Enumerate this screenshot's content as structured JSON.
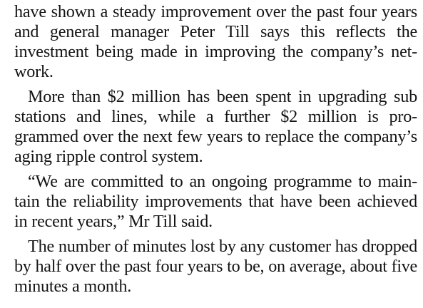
{
  "article": {
    "paragraphs": [
      {
        "lines": [
          "have shown a steady improvement over the past four years",
          "and general manager Peter Till says this reflects the",
          "investment being made in improving the company’s net-",
          "work."
        ]
      },
      {
        "lines": [
          "More than $2 million has been spent in upgrading sub",
          "stations and lines, while a further $2 million is pro-",
          "grammed over the next few years to replace the company’s",
          "aging ripple control system."
        ]
      },
      {
        "lines": [
          "“We are committed to an ongoing programme to main-",
          "tain the reliability improvements that have been achieved",
          "in recent years,” Mr Till said."
        ]
      },
      {
        "lines": [
          "The number of minutes lost by any customer has dropped",
          "by half over the past four years to be, on average, about five",
          "minutes a month."
        ]
      }
    ]
  }
}
